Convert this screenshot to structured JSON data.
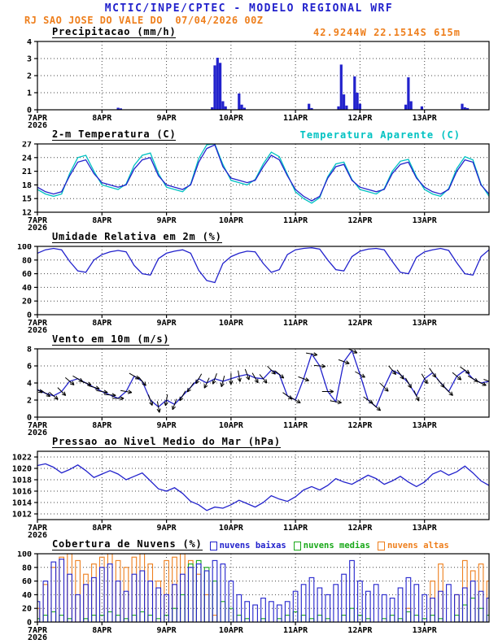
{
  "header": {
    "title": "MCTIC/INPE/CPTEC - MODELO REGIONAL WRF",
    "subtitle": "RJ SAO JOSE DO VALE DO  07/04/2026 00Z"
  },
  "station": {
    "coords_label": "42.9244W 22.1514S 615m"
  },
  "colors": {
    "blue": "#2222cc",
    "cyan": "#00c2c2",
    "green": "#18a818",
    "orange": "#ee7f1d",
    "black": "#000000",
    "grid": "#444444"
  },
  "x_axis": {
    "hours_span": 168,
    "tick_hours": [
      0,
      24,
      48,
      72,
      96,
      120,
      144
    ],
    "tick_labels": [
      "7APR",
      "8APR",
      "9APR",
      "10APR",
      "11APR",
      "12APR",
      "13APR"
    ],
    "year_label": "2026"
  },
  "panels": {
    "precipitation": {
      "title": "Precipitacao (mm/h)"
    },
    "temperature": {
      "title": "2-m Temperatura (C)",
      "secondary_label": "Temperatura Aparente (C)"
    },
    "humidity": {
      "title": "Umidade Relativa em 2m (%)"
    },
    "wind": {
      "title": "Vento em 10m (m/s)"
    },
    "pressure": {
      "title": "Pressao ao Nivel Medio do Mar (hPa)"
    },
    "clouds": {
      "title": "Cobertura de Nuvens (%)",
      "legend": [
        {
          "label": "nuvens baixas"
        },
        {
          "label": "nuvens medias"
        },
        {
          "label": "nuvens altas"
        }
      ]
    }
  },
  "chart_data": [
    {
      "key": "precipitation",
      "type": "bar",
      "title": "Precipitacao (mm/h)",
      "xlabel": "hours since 07APR2026 00Z",
      "ylabel": "mm/h",
      "ylim": [
        0,
        4
      ],
      "y_ticks": [
        0,
        1,
        2,
        3,
        4
      ],
      "events_hour_value": [
        [
          30,
          0.12
        ],
        [
          31,
          0.08
        ],
        [
          65,
          0.15
        ],
        [
          66,
          2.6
        ],
        [
          67,
          3.05
        ],
        [
          68,
          2.75
        ],
        [
          69,
          0.5
        ],
        [
          70,
          0.2
        ],
        [
          75,
          0.95
        ],
        [
          76,
          0.3
        ],
        [
          77,
          0.12
        ],
        [
          101,
          0.35
        ],
        [
          102,
          0.1
        ],
        [
          112,
          0.2
        ],
        [
          113,
          2.65
        ],
        [
          114,
          0.9
        ],
        [
          115,
          0.25
        ],
        [
          118,
          1.95
        ],
        [
          119,
          1.0
        ],
        [
          120,
          0.35
        ],
        [
          137,
          0.3
        ],
        [
          138,
          1.9
        ],
        [
          139,
          0.5
        ],
        [
          143,
          0.2
        ],
        [
          158,
          0.35
        ],
        [
          159,
          0.15
        ],
        [
          160,
          0.1
        ]
      ]
    },
    {
      "key": "temperature",
      "type": "line",
      "title": "2-m Temperatura (C)",
      "ylim": [
        12,
        27
      ],
      "y_ticks": [
        12,
        15,
        18,
        21,
        24,
        27
      ],
      "step_hours": 3,
      "series": [
        {
          "name": "Temperatura Aparente (C)",
          "color_key": "cyan",
          "values": [
            17.0,
            16.0,
            15.5,
            16.0,
            20.5,
            24.0,
            24.5,
            21.0,
            18.0,
            17.5,
            17.0,
            18.2,
            22.3,
            24.5,
            25.0,
            20.5,
            17.5,
            17.0,
            16.5,
            18.2,
            23.8,
            26.8,
            27.0,
            22.5,
            19.0,
            18.5,
            18.0,
            19.2,
            22.6,
            25.2,
            24.2,
            20.3,
            16.5,
            15.0,
            14.0,
            15.2,
            19.8,
            22.6,
            23.0,
            19.2,
            17.0,
            16.5,
            16.0,
            17.2,
            21.0,
            23.2,
            23.6,
            19.8,
            17.0,
            16.0,
            15.5,
            17.2,
            21.6,
            24.2,
            23.5,
            18.2,
            15.5
          ]
        },
        {
          "name": "2-m Temperatura (C)",
          "color_key": "blue",
          "values": [
            17.5,
            16.5,
            16.0,
            16.5,
            20.0,
            23.0,
            23.5,
            20.5,
            18.5,
            18.0,
            17.5,
            18.0,
            21.5,
            23.5,
            24.0,
            20.0,
            18.0,
            17.5,
            17.0,
            18.0,
            23.0,
            26.0,
            26.8,
            22.0,
            19.5,
            19.0,
            18.5,
            19.0,
            22.0,
            24.5,
            23.5,
            20.0,
            17.0,
            15.5,
            14.5,
            15.5,
            19.5,
            22.0,
            22.5,
            19.0,
            17.5,
            17.0,
            16.5,
            17.0,
            20.5,
            22.5,
            23.0,
            19.5,
            17.5,
            16.5,
            16.0,
            17.0,
            21.0,
            23.5,
            23.0,
            18.0,
            16.0
          ]
        }
      ]
    },
    {
      "key": "humidity",
      "type": "line",
      "title": "Umidade Relativa em 2m (%)",
      "ylim": [
        0,
        100
      ],
      "y_ticks": [
        0,
        20,
        40,
        60,
        80,
        100
      ],
      "step_hours": 3,
      "series": [
        {
          "name": "Umidade Relativa em 2m (%)",
          "color_key": "blue",
          "values": [
            90,
            95,
            97,
            95,
            78,
            64,
            62,
            80,
            88,
            92,
            94,
            92,
            72,
            60,
            58,
            82,
            90,
            93,
            95,
            90,
            65,
            50,
            47,
            75,
            85,
            90,
            93,
            92,
            75,
            62,
            66,
            88,
            95,
            97,
            98,
            96,
            80,
            66,
            64,
            85,
            93,
            96,
            97,
            95,
            78,
            62,
            60,
            84,
            92,
            95,
            97,
            94,
            76,
            60,
            58,
            85,
            95
          ]
        }
      ]
    },
    {
      "key": "wind",
      "type": "wind",
      "title": "Vento em 10m (m/s)",
      "ylim": [
        0,
        8
      ],
      "y_ticks": [
        0,
        2,
        4,
        6,
        8
      ],
      "step_hours": 3,
      "speed": [
        3.2,
        2.8,
        2.5,
        3.0,
        4.2,
        4.5,
        4.0,
        3.5,
        3.0,
        2.6,
        2.2,
        3.0,
        4.8,
        4.2,
        2.0,
        1.2,
        2.0,
        1.5,
        2.5,
        3.5,
        4.5,
        4.0,
        4.5,
        4.2,
        4.5,
        4.8,
        5.0,
        4.6,
        4.5,
        5.5,
        5.0,
        2.5,
        2.0,
        4.5,
        7.4,
        6.0,
        3.0,
        1.8,
        6.5,
        7.8,
        5.0,
        2.0,
        1.2,
        3.5,
        5.5,
        5.0,
        4.0,
        2.5,
        4.5,
        5.2,
        4.0,
        3.0,
        4.8,
        5.5,
        4.5,
        4.0,
        4.2
      ],
      "direction_deg": [
        120,
        125,
        130,
        135,
        130,
        120,
        110,
        105,
        100,
        95,
        90,
        100,
        120,
        140,
        160,
        170,
        190,
        200,
        210,
        215,
        210,
        205,
        200,
        195,
        180,
        170,
        160,
        150,
        140,
        135,
        130,
        125,
        120,
        110,
        100,
        95,
        90,
        100,
        110,
        115,
        120,
        125,
        130,
        135,
        140,
        145,
        150,
        155,
        150,
        145,
        140,
        135,
        130,
        125,
        120,
        115,
        110
      ]
    },
    {
      "key": "pressure",
      "type": "line",
      "title": "Pressao ao Nivel Medio do Mar (hPa)",
      "ylim": [
        1011,
        1023
      ],
      "y_ticks": [
        1012,
        1014,
        1016,
        1018,
        1020,
        1022
      ],
      "step_hours": 3,
      "series": [
        {
          "name": "Pressao ao Nivel Medio do Mar (hPa)",
          "color_key": "blue",
          "values": [
            1020.5,
            1020.8,
            1020.2,
            1019.2,
            1019.8,
            1020.6,
            1019.6,
            1018.4,
            1019.0,
            1019.6,
            1019.0,
            1018.0,
            1018.6,
            1019.2,
            1017.8,
            1016.4,
            1016.0,
            1016.6,
            1015.6,
            1014.2,
            1013.6,
            1012.6,
            1013.2,
            1013.0,
            1013.6,
            1014.4,
            1013.8,
            1013.2,
            1014.0,
            1015.2,
            1014.6,
            1014.2,
            1015.0,
            1016.2,
            1016.8,
            1016.2,
            1017.0,
            1018.2,
            1017.6,
            1017.2,
            1018.0,
            1018.8,
            1018.2,
            1017.2,
            1017.8,
            1018.6,
            1017.6,
            1016.8,
            1017.6,
            1019.0,
            1019.6,
            1018.8,
            1019.4,
            1020.4,
            1019.2,
            1017.8,
            1017.0
          ]
        }
      ]
    },
    {
      "key": "clouds",
      "type": "bar-multi",
      "title": "Cobertura de Nuvens (%)",
      "ylim": [
        0,
        100
      ],
      "y_ticks": [
        0,
        20,
        40,
        60,
        80,
        100
      ],
      "step_hours": 3,
      "series": [
        {
          "name": "nuvens baixas",
          "color_key": "blue",
          "values": [
            30,
            60,
            88,
            92,
            70,
            40,
            55,
            65,
            80,
            85,
            60,
            45,
            70,
            75,
            60,
            50,
            40,
            55,
            70,
            80,
            85,
            75,
            90,
            85,
            60,
            40,
            30,
            25,
            35,
            30,
            25,
            30,
            45,
            55,
            65,
            50,
            40,
            55,
            70,
            90,
            60,
            45,
            55,
            40,
            35,
            50,
            65,
            55,
            40,
            35,
            45,
            55,
            40,
            50,
            60,
            45,
            35
          ]
        },
        {
          "name": "nuvens medias",
          "color_key": "green",
          "values": [
            5,
            10,
            15,
            10,
            5,
            0,
            5,
            10,
            10,
            15,
            10,
            5,
            10,
            15,
            10,
            5,
            10,
            20,
            40,
            85,
            90,
            80,
            60,
            30,
            20,
            10,
            5,
            0,
            5,
            0,
            5,
            10,
            15,
            10,
            5,
            10,
            5,
            0,
            10,
            20,
            10,
            5,
            0,
            5,
            10,
            5,
            15,
            10,
            5,
            10,
            5,
            0,
            10,
            25,
            35,
            20,
            10
          ]
        },
        {
          "name": "nuvens altas",
          "color_key": "orange",
          "values": [
            20,
            55,
            80,
            95,
            100,
            90,
            70,
            85,
            95,
            100,
            90,
            80,
            95,
            100,
            85,
            60,
            90,
            95,
            100,
            90,
            70,
            40,
            10,
            0,
            0,
            0,
            0,
            0,
            0,
            0,
            0,
            0,
            0,
            0,
            0,
            0,
            0,
            0,
            0,
            0,
            0,
            0,
            0,
            0,
            0,
            0,
            20,
            0,
            0,
            60,
            85,
            0,
            40,
            90,
            75,
            85,
            60
          ]
        }
      ]
    }
  ]
}
